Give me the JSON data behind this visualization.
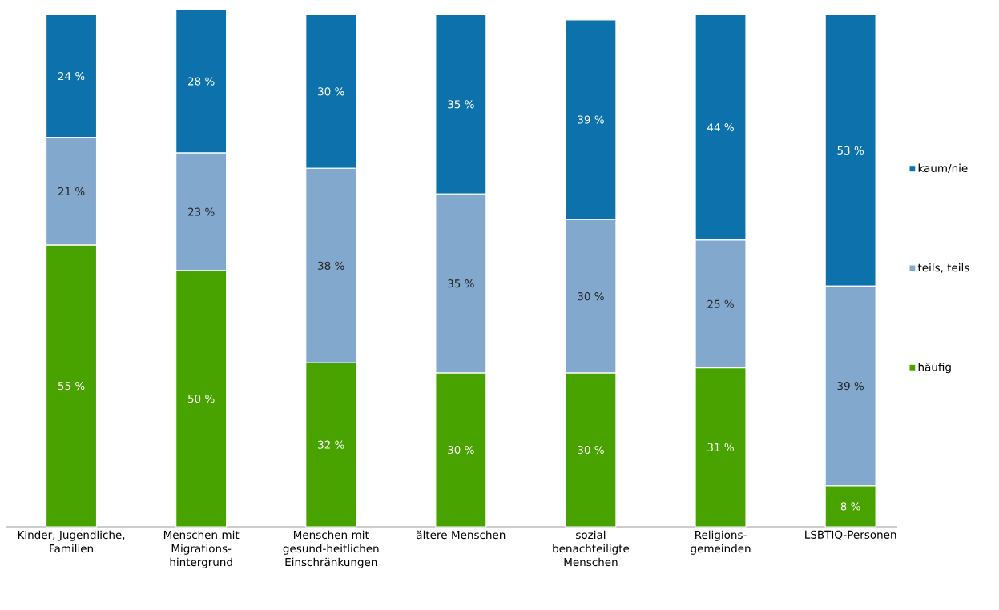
{
  "chart_data": {
    "type": "bar",
    "stacked": true,
    "legend": "right",
    "categories": [
      "Kinder, Jugendliche, Familien",
      "Menschen mit Migrations-hintergrund",
      "Menschen mit gesund-heitlichen Einschränkungen",
      "ältere Menschen",
      "sozial benachteiligte Menschen",
      "Religions-gemeinden",
      "LSBTIQ-Personen"
    ],
    "series": [
      {
        "name": "häufig",
        "color": "#48a300",
        "values": [
          55,
          50,
          32,
          30,
          30,
          31,
          8
        ],
        "value_labels": [
          "55 %",
          "50 %",
          "32 %",
          "30 %",
          "30 %",
          "31 %",
          "8 %"
        ]
      },
      {
        "name": "teils, teils",
        "color": "#82a8cd",
        "values": [
          21,
          23,
          38,
          35,
          30,
          25,
          39
        ],
        "value_labels": [
          "21 %",
          "23 %",
          "38 %",
          "35 %",
          "30 %",
          "25 %",
          "39 %"
        ]
      },
      {
        "name": "kaum/nie",
        "color": "#0d72ab",
        "values": [
          24,
          28,
          30,
          35,
          39,
          44,
          53
        ],
        "value_labels": [
          "24 %",
          "28 %",
          "30 %",
          "35 %",
          "39 %",
          "44 %",
          "53 %"
        ]
      }
    ]
  }
}
